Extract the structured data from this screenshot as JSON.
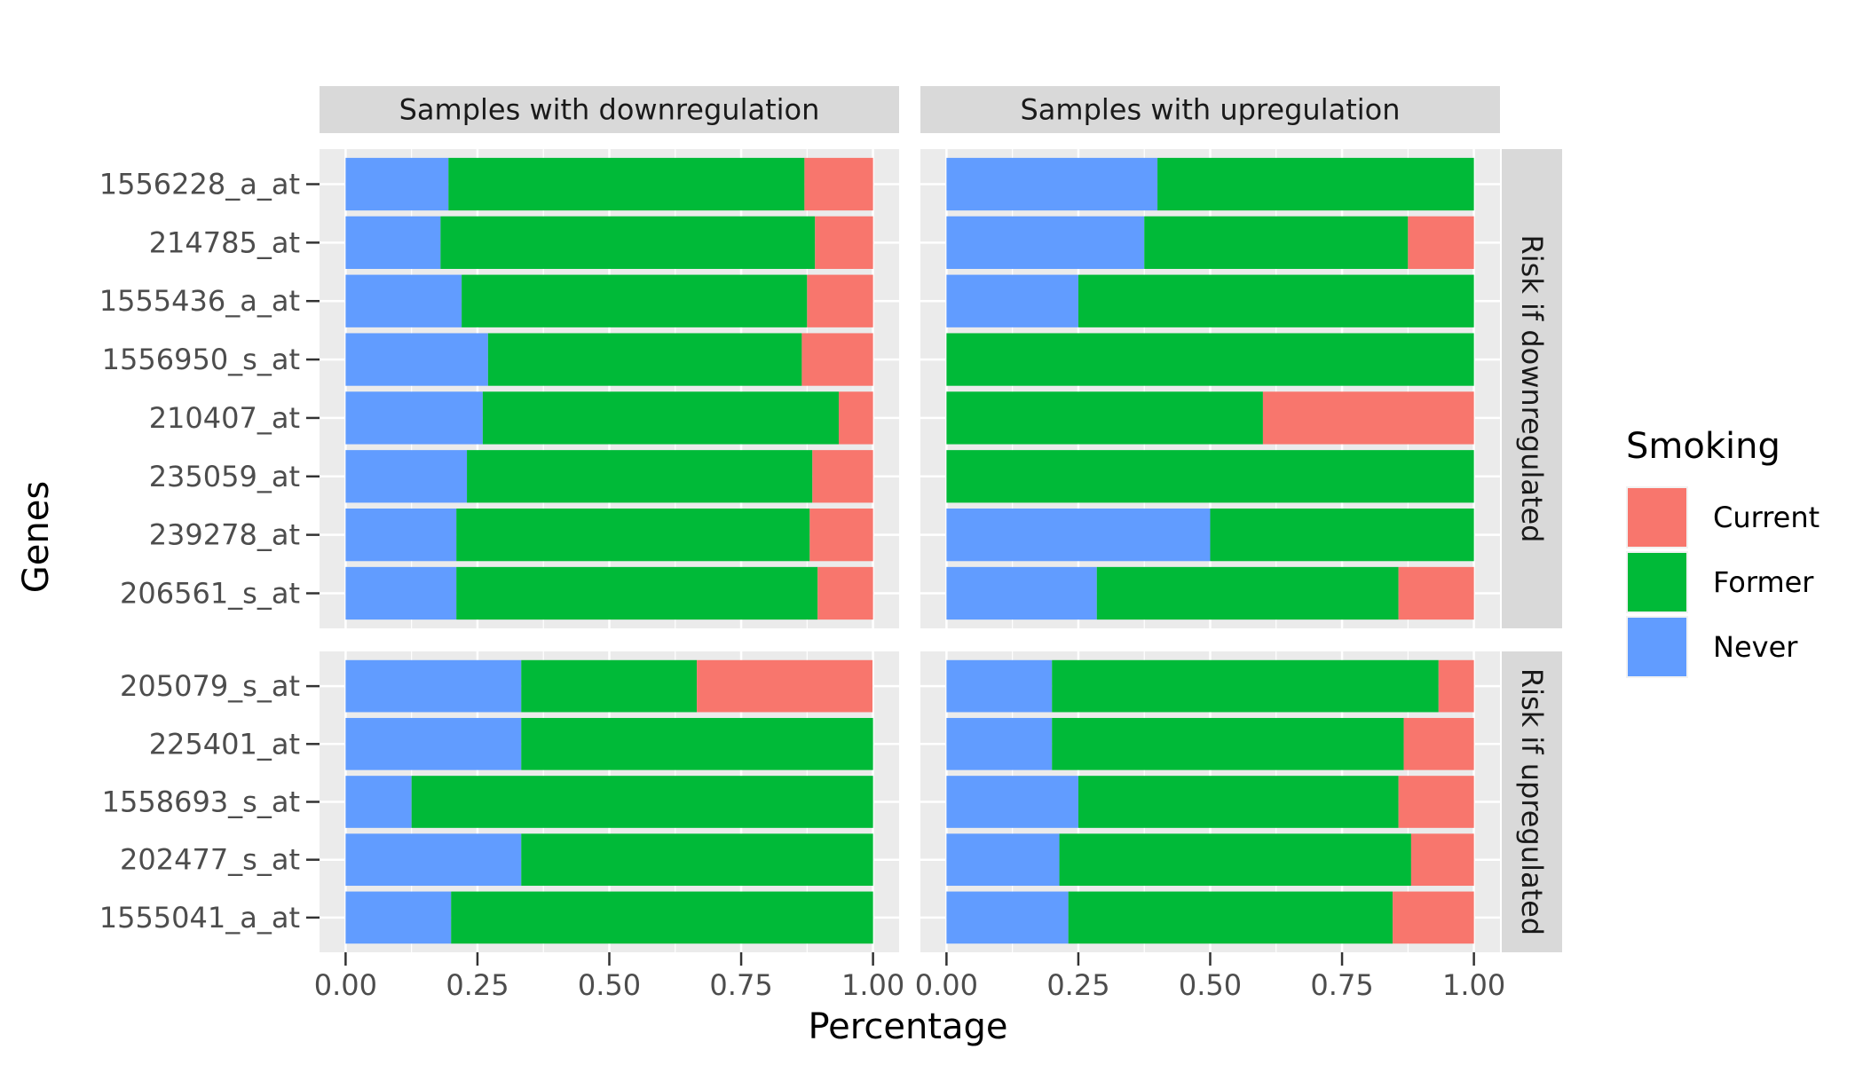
{
  "chart_data": {
    "type": "bar",
    "orientation": "horizontal",
    "stacked": true,
    "xlabel": "Percentage",
    "ylabel": "Genes",
    "xlim": [
      0,
      1
    ],
    "x_ticks": [
      "0.00",
      "0.25",
      "0.50",
      "0.75",
      "1.00"
    ],
    "x_tick_values": [
      0,
      0.25,
      0.5,
      0.75,
      1
    ],
    "grid": true,
    "legend": {
      "title": "Smoking",
      "position": "right",
      "entries": [
        {
          "name": "Current",
          "color": "#F8766D"
        },
        {
          "name": "Former",
          "color": "#00BA38"
        },
        {
          "name": "Never",
          "color": "#619CFF"
        }
      ]
    },
    "stack_order": [
      "Never",
      "Former",
      "Current"
    ],
    "column_facets": [
      "Samples with downregulation",
      "Samples with upregulation"
    ],
    "row_facets": [
      {
        "label": "Risk if downregulated",
        "genes": [
          "1556228_a_at",
          "214785_at",
          "1555436_a_at",
          "1556950_s_at",
          "210407_at",
          "235059_at",
          "239278_at",
          "206561_s_at"
        ],
        "panels": [
          {
            "column": "Samples with downregulation",
            "Never": [
              0.195,
              0.18,
              0.22,
              0.27,
              0.26,
              0.23,
              0.21,
              0.21
            ],
            "Former": [
              0.675,
              0.71,
              0.655,
              0.595,
              0.675,
              0.655,
              0.67,
              0.685
            ],
            "Current": [
              0.13,
              0.11,
              0.125,
              0.135,
              0.065,
              0.115,
              0.12,
              0.105
            ]
          },
          {
            "column": "Samples with upregulation",
            "Never": [
              0.4,
              0.375,
              0.25,
              0.0,
              0.0,
              0.0,
              0.5,
              0.285
            ],
            "Former": [
              0.6,
              0.5,
              0.75,
              1.0,
              0.6,
              1.0,
              0.5,
              0.572
            ],
            "Current": [
              0.0,
              0.125,
              0.0,
              0.0,
              0.4,
              0.0,
              0.0,
              0.143
            ]
          }
        ]
      },
      {
        "label": "Risk if upregulated",
        "genes": [
          "205079_s_at",
          "225401_at",
          "1558693_s_at",
          "202477_s_at",
          "1555041_a_at"
        ],
        "panels": [
          {
            "column": "Samples with downregulation",
            "Never": [
              0.333,
              0.333,
              0.125,
              0.333,
              0.2
            ],
            "Former": [
              0.333,
              0.667,
              0.875,
              0.667,
              0.8
            ],
            "Current": [
              0.333,
              0.0,
              0.0,
              0.0,
              0.0
            ]
          },
          {
            "column": "Samples with upregulation",
            "Never": [
              0.2,
              0.2,
              0.25,
              0.214,
              0.231
            ],
            "Former": [
              0.733,
              0.667,
              0.607,
              0.667,
              0.615
            ],
            "Current": [
              0.067,
              0.133,
              0.143,
              0.119,
              0.154
            ]
          }
        ]
      }
    ]
  }
}
